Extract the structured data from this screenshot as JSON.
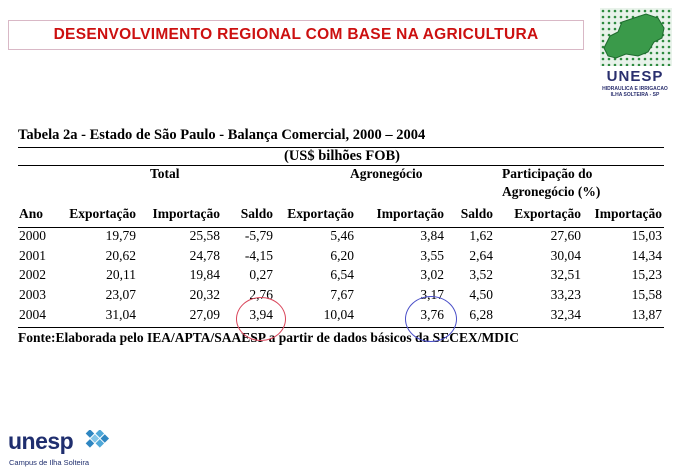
{
  "banner_title": "DESENVOLVIMENTO  REGIONAL COM  BASE  NA  AGRICULTURA",
  "logo_top": {
    "brand": "UNESP",
    "line1": "HIDRAULICA E IRRIGACAO",
    "line2": "ILHA SOLTEIRA - SP"
  },
  "table": {
    "title": "Tabela 2a - Estado de São Paulo - Balança Comercial, 2000 – 2004",
    "units": "(US$ bilhões FOB)",
    "group_headers": {
      "total": "Total",
      "agro": "Agronegócio",
      "part_line1": "Participação do",
      "part_line2": "Agronegócio (%)"
    },
    "columns": [
      "Ano",
      "Exportação",
      "Importação",
      "Saldo",
      "Exportação",
      "Importação",
      "Saldo",
      "Exportação",
      "Importação"
    ],
    "rows": [
      [
        "2000",
        "19,79",
        "25,58",
        "-5,79",
        "5,46",
        "3,84",
        "1,62",
        "27,60",
        "15,03"
      ],
      [
        "2001",
        "20,62",
        "24,78",
        "-4,15",
        "6,20",
        "3,55",
        "2,64",
        "30,04",
        "14,34"
      ],
      [
        "2002",
        "20,11",
        "19,84",
        "0,27",
        "6,54",
        "3,02",
        "3,52",
        "32,51",
        "15,23"
      ],
      [
        "2003",
        "23,07",
        "20,32",
        "2,76",
        "7,67",
        "3,17",
        "4,50",
        "33,23",
        "15,58"
      ],
      [
        "2004",
        "31,04",
        "27,09",
        "3,94",
        "10,04",
        "3,76",
        "6,28",
        "32,34",
        "13,87"
      ]
    ],
    "source": "Fonte:Elaborada pelo IEA/APTA/SAAESP a partir de dados básicos da SECEX/MDIC"
  },
  "highlights": {
    "red_circle": "#d9455a",
    "blue_circle": "#4a4fc8"
  },
  "logo_bottom": {
    "word": "unesp",
    "campus": "Campus de Ilha Solteira"
  },
  "colors": {
    "banner_text": "#cc1010",
    "brand": "#1f2e6e"
  }
}
